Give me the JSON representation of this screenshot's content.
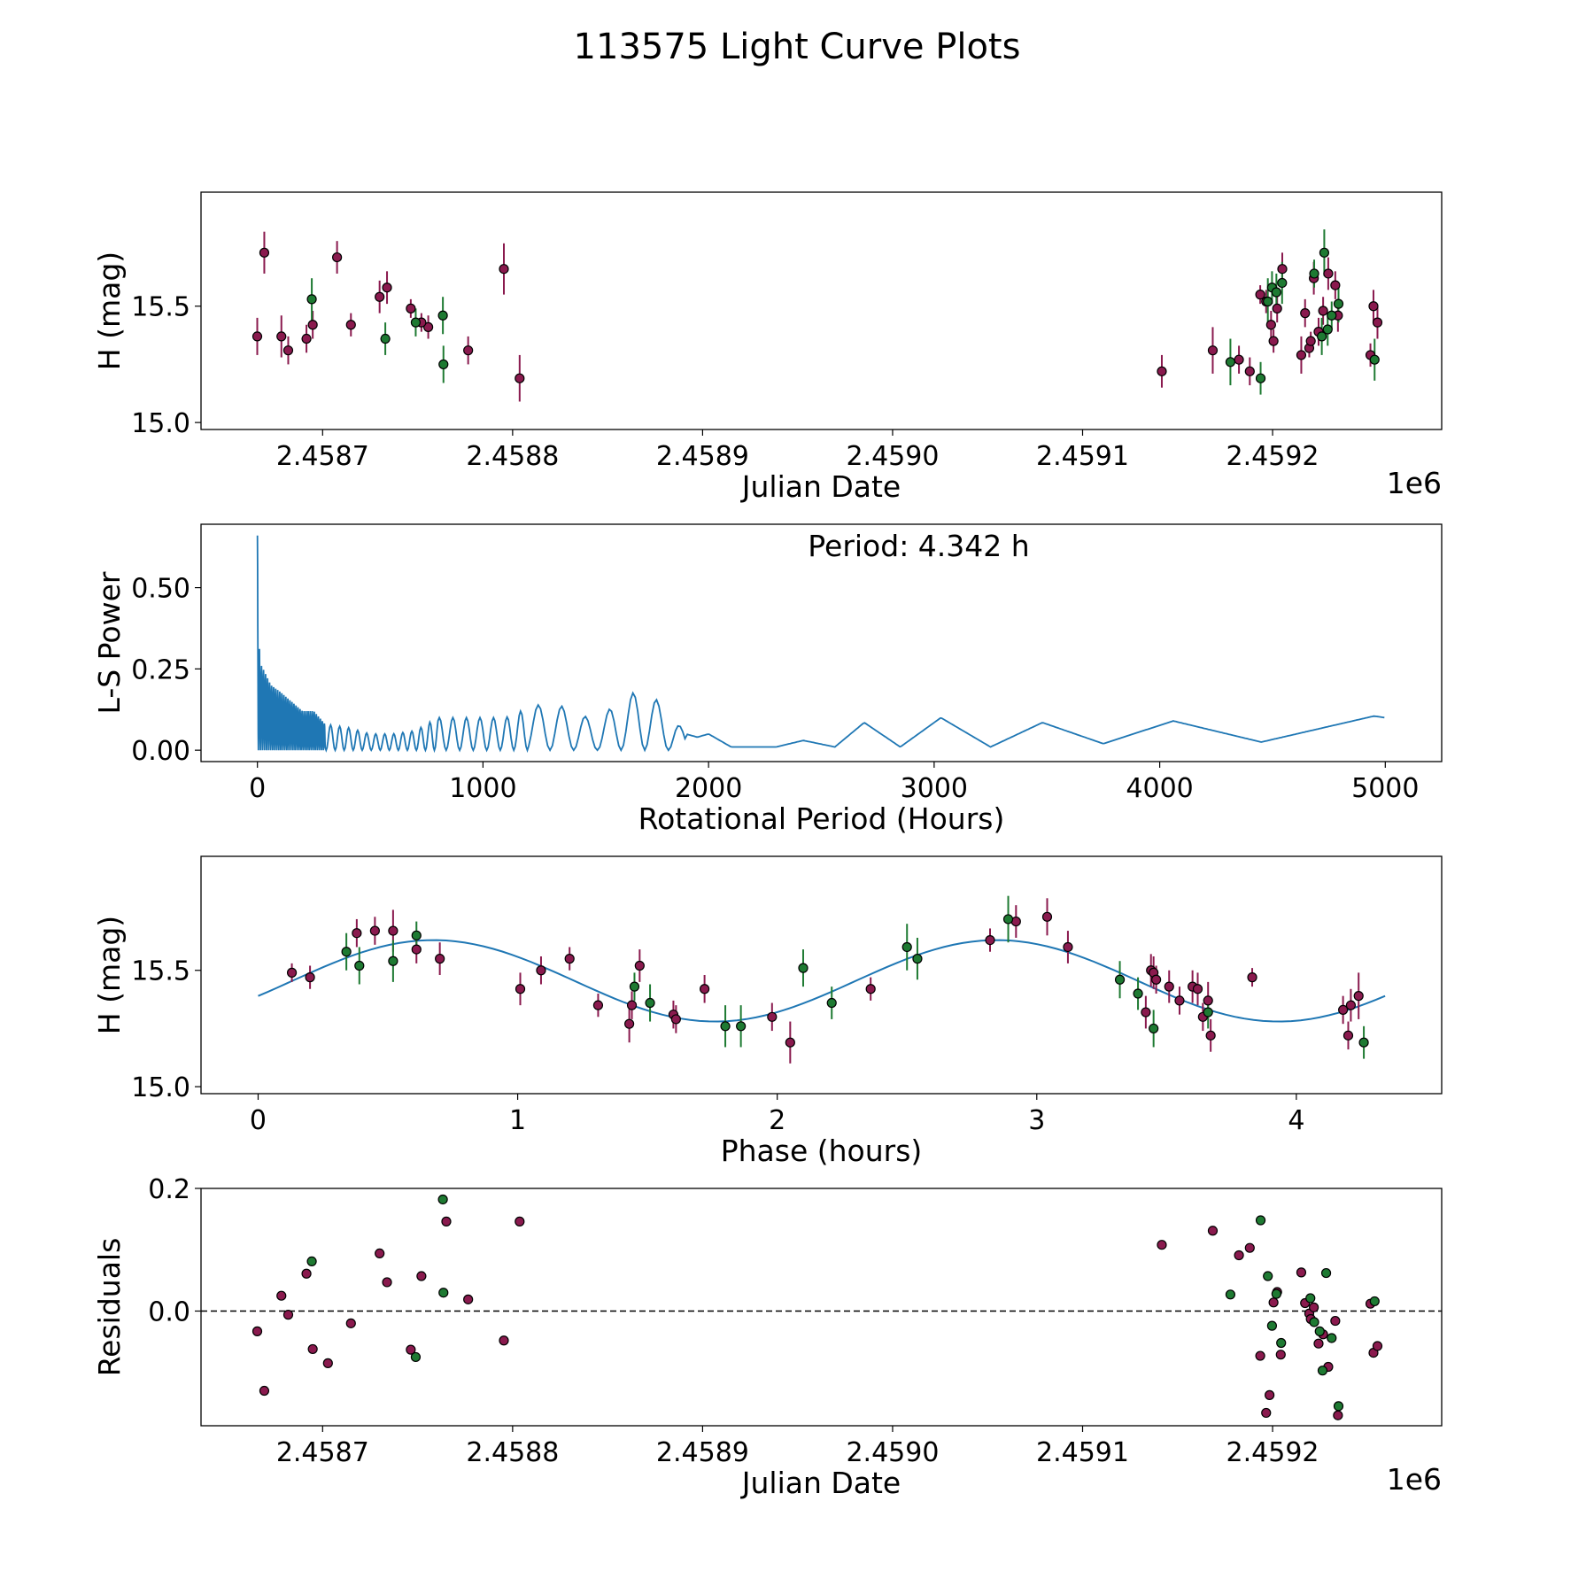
{
  "title": "113575 Light Curve Plots",
  "colors": {
    "red": "#8a1a4e",
    "green": "#1e7a32",
    "curve": "#1f77b4",
    "edge": "#000000"
  },
  "chart_data": [
    {
      "id": "lightcurve",
      "type": "scatter",
      "xlabel": "Julian Date",
      "ylabel": "H (mag)",
      "offset_label": "1e6",
      "xlim": [
        2458636,
        2459289
      ],
      "ylim": [
        14.97,
        15.99
      ],
      "xticks": [
        2458700,
        2458800,
        2458900,
        2459000,
        2459100,
        2459200
      ],
      "xtick_labels": [
        "2.4587",
        "2.4588",
        "2.4589",
        "2.4590",
        "2.4591",
        "2.4592"
      ],
      "yticks": [
        15.0,
        15.5
      ],
      "ytick_labels": [
        "15.0",
        "15.5"
      ],
      "series": [
        {
          "name": "red",
          "color": "#8a1a4e",
          "points": [
            [
              2458665.6,
              15.37,
              0.08
            ],
            [
              2458669.3,
              15.73,
              0.09
            ],
            [
              2458678.3,
              15.37,
              0.09
            ],
            [
              2458681.9,
              15.31,
              0.06
            ],
            [
              2458691.5,
              15.36,
              0.06
            ],
            [
              2458694.8,
              15.42,
              0.06
            ],
            [
              2458707.6,
              15.71,
              0.07
            ],
            [
              2458714.9,
              15.42,
              0.05
            ],
            [
              2458730.0,
              15.54,
              0.07
            ],
            [
              2458733.9,
              15.58,
              0.07
            ],
            [
              2458746.4,
              15.49,
              0.04
            ],
            [
              2458755.6,
              15.41,
              0.05
            ],
            [
              2458776.6,
              15.31,
              0.06
            ],
            [
              2458795.4,
              15.66,
              0.11
            ],
            [
              2458803.7,
              15.19,
              0.1
            ],
            [
              2458752.0,
              15.43,
              0.04
            ],
            [
              2459141.7,
              15.22,
              0.07
            ],
            [
              2459168.5,
              15.31,
              0.1
            ],
            [
              2459182.3,
              15.27,
              0.06
            ],
            [
              2459188.0,
              15.22,
              0.06
            ],
            [
              2459193.5,
              15.55,
              0.04
            ],
            [
              2459196.6,
              15.52,
              0.05
            ],
            [
              2459199.2,
              15.42,
              0.06
            ],
            [
              2459200.5,
              15.35,
              0.05
            ],
            [
              2459202.4,
              15.49,
              0.06
            ],
            [
              2459205.1,
              15.66,
              0.07
            ],
            [
              2459215.1,
              15.29,
              0.08
            ],
            [
              2459217.1,
              15.47,
              0.06
            ],
            [
              2459219.3,
              15.32,
              0.04
            ],
            [
              2459220.1,
              15.35,
              0.04
            ],
            [
              2459221.7,
              15.62,
              0.07
            ],
            [
              2459224.2,
              15.39,
              0.06
            ],
            [
              2459226.6,
              15.48,
              0.06
            ],
            [
              2459229.3,
              15.64,
              0.07
            ],
            [
              2459233.0,
              15.59,
              0.06
            ],
            [
              2459234.4,
              15.46,
              0.07
            ],
            [
              2459251.5,
              15.29,
              0.05
            ],
            [
              2459253.1,
              15.5,
              0.07
            ],
            [
              2459255.2,
              15.43,
              0.07
            ]
          ]
        },
        {
          "name": "green",
          "color": "#1e7a32",
          "points": [
            [
              2458694.3,
              15.53,
              0.09
            ],
            [
              2458733.0,
              15.36,
              0.07
            ],
            [
              2458749.0,
              15.43,
              0.06
            ],
            [
              2458763.3,
              15.46,
              0.08
            ],
            [
              2458763.6,
              15.25,
              0.08
            ],
            [
              2459177.8,
              15.26,
              0.1
            ],
            [
              2459193.7,
              15.19,
              0.07
            ],
            [
              2459197.5,
              15.52,
              0.1
            ],
            [
              2459199.7,
              15.58,
              0.07
            ],
            [
              2459202.0,
              15.56,
              0.08
            ],
            [
              2459205.0,
              15.6,
              0.09
            ],
            [
              2459221.9,
              15.64,
              0.06
            ],
            [
              2459225.9,
              15.37,
              0.08
            ],
            [
              2459227.2,
              15.73,
              0.1
            ],
            [
              2459229.0,
              15.4,
              0.07
            ],
            [
              2459231.1,
              15.46,
              0.06
            ],
            [
              2459234.7,
              15.51,
              0.08
            ],
            [
              2459253.7,
              15.27,
              0.09
            ]
          ]
        }
      ]
    },
    {
      "id": "periodogram",
      "type": "line",
      "xlabel": "Rotational Period (Hours)",
      "ylabel": "L-S Power",
      "annotation": "Period: 4.342 h",
      "xlim": [
        -250,
        5250
      ],
      "ylim": [
        -0.035,
        0.695
      ],
      "xticks": [
        0,
        1000,
        2000,
        3000,
        4000,
        5000
      ],
      "xtick_labels": [
        "0",
        "1000",
        "2000",
        "3000",
        "4000",
        "5000"
      ],
      "yticks": [
        0.0,
        0.25,
        0.5
      ],
      "ytick_labels": [
        "0.00",
        "0.25",
        "0.50"
      ],
      "envelope": {
        "x": [
          0,
          10,
          25,
          60,
          100,
          150,
          200,
          250,
          300,
          400,
          500,
          600,
          700,
          800,
          900,
          1000,
          1100,
          1200,
          1300,
          1400,
          1500,
          1600,
          1700,
          1800,
          1900,
          1950,
          2000,
          2100,
          2200,
          2300,
          2420,
          2560,
          2690,
          2850,
          3030,
          3250,
          3480,
          3750,
          4060,
          4450,
          4950,
          5000
        ],
        "y": [
          0.66,
          0.27,
          0.25,
          0.2,
          0.18,
          0.15,
          0.12,
          0.12,
          0.08,
          0.07,
          0.05,
          0.05,
          0.06,
          0.1,
          0.1,
          0.1,
          0.1,
          0.13,
          0.15,
          0.12,
          0.09,
          0.15,
          0.19,
          0.14,
          0.05,
          0.04,
          0.05,
          0.01,
          0.01,
          0.01,
          0.03,
          0.01,
          0.085,
          0.01,
          0.1,
          0.01,
          0.085,
          0.02,
          0.09,
          0.025,
          0.105,
          0.1
        ]
      },
      "fringe_periods": [
        [
          0,
          300,
          9
        ],
        [
          300,
          800,
          40
        ],
        [
          800,
          1200,
          60
        ],
        [
          1200,
          1900,
          105
        ]
      ]
    },
    {
      "id": "phased",
      "type": "scatter",
      "xlabel": "Phase (hours)",
      "ylabel": "H (mag)",
      "xlim": [
        -0.22,
        4.56
      ],
      "ylim": [
        14.97,
        15.99
      ],
      "xticks": [
        0,
        1,
        2,
        3,
        4
      ],
      "xtick_labels": [
        "0",
        "1",
        "2",
        "3",
        "4"
      ],
      "yticks": [
        15.0,
        15.5
      ],
      "ytick_labels": [
        "15.0",
        "15.5"
      ],
      "fit": {
        "period": 4.342,
        "mean": 15.455,
        "amplitude": 0.175,
        "peak_phase": 0.675,
        "samples": 120
      },
      "series": [
        {
          "name": "red",
          "color": "#8a1a4e",
          "points": [
            [
              0.13,
              15.49,
              0.04
            ],
            [
              0.2,
              15.47,
              0.05
            ],
            [
              0.38,
              15.66,
              0.06
            ],
            [
              0.45,
              15.67,
              0.06
            ],
            [
              0.52,
              15.67,
              0.09
            ],
            [
              0.61,
              15.59,
              0.06
            ],
            [
              0.7,
              15.55,
              0.07
            ],
            [
              1.01,
              15.42,
              0.07
            ],
            [
              1.09,
              15.5,
              0.06
            ],
            [
              1.2,
              15.55,
              0.05
            ],
            [
              1.31,
              15.35,
              0.05
            ],
            [
              1.43,
              15.27,
              0.08
            ],
            [
              1.44,
              15.35,
              0.06
            ],
            [
              1.47,
              15.52,
              0.07
            ],
            [
              1.6,
              15.31,
              0.06
            ],
            [
              1.61,
              15.29,
              0.06
            ],
            [
              1.72,
              15.42,
              0.06
            ],
            [
              1.98,
              15.3,
              0.06
            ],
            [
              2.05,
              15.19,
              0.09
            ],
            [
              2.36,
              15.42,
              0.05
            ],
            [
              2.82,
              15.63,
              0.05
            ],
            [
              2.92,
              15.71,
              0.07
            ],
            [
              3.04,
              15.73,
              0.08
            ],
            [
              3.12,
              15.6,
              0.07
            ],
            [
              3.42,
              15.32,
              0.07
            ],
            [
              3.44,
              15.5,
              0.07
            ],
            [
              3.45,
              15.49,
              0.07
            ],
            [
              3.46,
              15.46,
              0.06
            ],
            [
              3.51,
              15.43,
              0.07
            ],
            [
              3.55,
              15.37,
              0.06
            ],
            [
              3.6,
              15.43,
              0.07
            ],
            [
              3.62,
              15.42,
              0.07
            ],
            [
              3.64,
              15.3,
              0.06
            ],
            [
              3.66,
              15.37,
              0.08
            ],
            [
              3.67,
              15.22,
              0.07
            ],
            [
              3.83,
              15.47,
              0.04
            ],
            [
              4.18,
              15.33,
              0.06
            ],
            [
              4.2,
              15.22,
              0.06
            ],
            [
              4.21,
              15.35,
              0.07
            ],
            [
              4.24,
              15.39,
              0.1
            ]
          ]
        },
        {
          "name": "green",
          "color": "#1e7a32",
          "points": [
            [
              0.34,
              15.58,
              0.08
            ],
            [
              0.39,
              15.52,
              0.08
            ],
            [
              0.52,
              15.54,
              0.09
            ],
            [
              0.61,
              15.65,
              0.06
            ],
            [
              1.45,
              15.43,
              0.06
            ],
            [
              1.51,
              15.36,
              0.08
            ],
            [
              1.8,
              15.26,
              0.09
            ],
            [
              1.86,
              15.26,
              0.09
            ],
            [
              2.1,
              15.51,
              0.08
            ],
            [
              2.21,
              15.36,
              0.07
            ],
            [
              2.5,
              15.6,
              0.1
            ],
            [
              2.54,
              15.55,
              0.09
            ],
            [
              2.89,
              15.72,
              0.1
            ],
            [
              3.32,
              15.46,
              0.08
            ],
            [
              3.39,
              15.4,
              0.07
            ],
            [
              3.45,
              15.25,
              0.08
            ],
            [
              3.66,
              15.32,
              0.07
            ],
            [
              4.26,
              15.19,
              0.07
            ]
          ]
        }
      ]
    },
    {
      "id": "residuals",
      "type": "scatter",
      "xlabel": "Julian Date",
      "ylabel": "Residuals",
      "offset_label": "1e6",
      "xlim": [
        2458636,
        2459289
      ],
      "ylim": [
        -0.187,
        0.2
      ],
      "xticks": [
        2458700,
        2458800,
        2458900,
        2459000,
        2459100,
        2459200
      ],
      "xtick_labels": [
        "2.4587",
        "2.4588",
        "2.4589",
        "2.4590",
        "2.4591",
        "2.4592"
      ],
      "yticks": [
        0.0,
        0.2
      ],
      "ytick_labels": [
        "0.0",
        "0.2"
      ],
      "baseline": 0.0,
      "series": [
        {
          "name": "red",
          "color": "#8a1a4e",
          "points": [
            [
              2458665.6,
              -0.033
            ],
            [
              2458669.3,
              -0.13
            ],
            [
              2458678.3,
              0.025
            ],
            [
              2458681.9,
              -0.006
            ],
            [
              2458691.5,
              0.061
            ],
            [
              2458694.8,
              -0.062
            ],
            [
              2458702.8,
              -0.085
            ],
            [
              2458714.9,
              -0.02
            ],
            [
              2458730.0,
              0.094
            ],
            [
              2458733.9,
              0.047
            ],
            [
              2458746.4,
              -0.063
            ],
            [
              2458752.0,
              0.057
            ],
            [
              2458765.1,
              0.146
            ],
            [
              2458776.6,
              0.019
            ],
            [
              2458795.4,
              -0.048
            ],
            [
              2458803.7,
              0.146
            ],
            [
              2459141.7,
              0.108
            ],
            [
              2459168.5,
              0.131
            ],
            [
              2459182.3,
              0.091
            ],
            [
              2459188.0,
              0.103
            ],
            [
              2459193.5,
              -0.073
            ],
            [
              2459196.6,
              -0.166
            ],
            [
              2459198.4,
              -0.137
            ],
            [
              2459200.5,
              0.014
            ],
            [
              2459202.4,
              0.031
            ],
            [
              2459204.3,
              -0.071
            ],
            [
              2459215.1,
              0.063
            ],
            [
              2459217.1,
              0.013
            ],
            [
              2459219.3,
              -0.004
            ],
            [
              2459220.1,
              -0.013
            ],
            [
              2459221.7,
              0.006
            ],
            [
              2459224.2,
              -0.053
            ],
            [
              2459226.6,
              -0.038
            ],
            [
              2459229.3,
              -0.091
            ],
            [
              2459233.0,
              -0.016
            ],
            [
              2459234.4,
              -0.17
            ],
            [
              2459251.5,
              0.012
            ],
            [
              2459253.1,
              -0.068
            ],
            [
              2459255.2,
              -0.057
            ]
          ]
        },
        {
          "name": "green",
          "color": "#1e7a32",
          "points": [
            [
              2458694.3,
              0.081
            ],
            [
              2458749.0,
              -0.075
            ],
            [
              2458763.3,
              0.182
            ],
            [
              2458763.6,
              0.03
            ],
            [
              2459177.8,
              0.027
            ],
            [
              2459193.7,
              0.148
            ],
            [
              2459197.5,
              0.057
            ],
            [
              2459199.7,
              -0.024
            ],
            [
              2459202.0,
              0.028
            ],
            [
              2459204.5,
              -0.052
            ],
            [
              2459219.9,
              0.021
            ],
            [
              2459221.9,
              -0.018
            ],
            [
              2459224.8,
              -0.033
            ],
            [
              2459226.3,
              -0.097
            ],
            [
              2459228.2,
              0.062
            ],
            [
              2459231.1,
              -0.044
            ],
            [
              2459234.7,
              -0.155
            ],
            [
              2459253.7,
              0.016
            ]
          ]
        }
      ]
    }
  ]
}
